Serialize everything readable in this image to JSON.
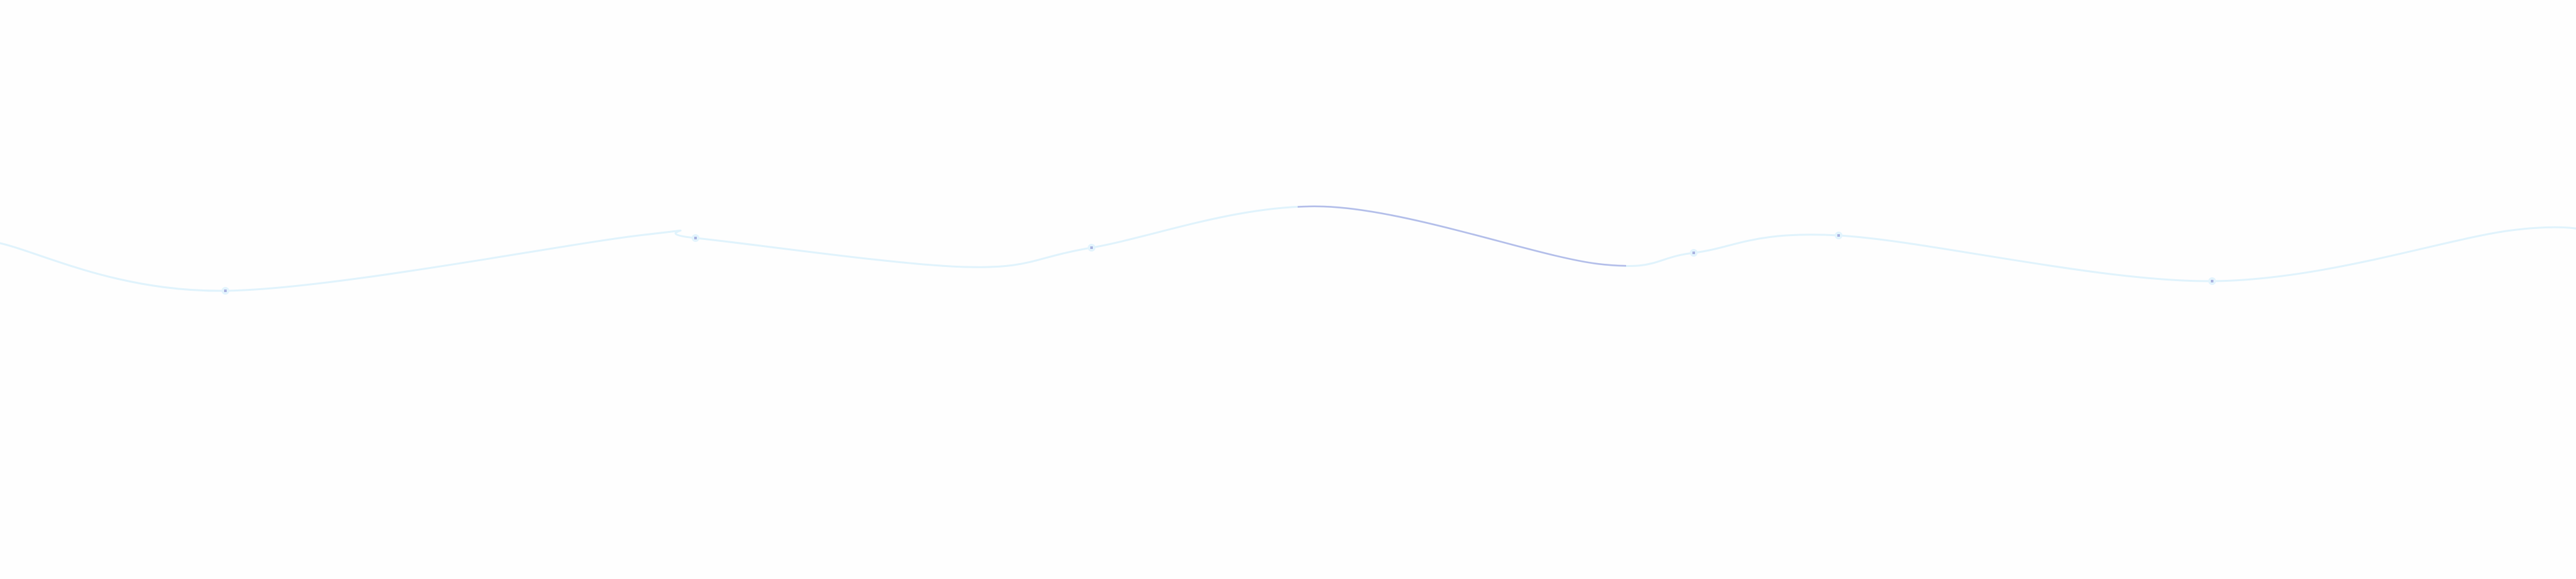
{
  "colors": {
    "background": "#fefefe",
    "wave_line": "#e0f3fc",
    "wave_highlight": "#b4bde9",
    "marker": "#a9b2e0",
    "marker_glow": "#e3f4fd"
  }
}
